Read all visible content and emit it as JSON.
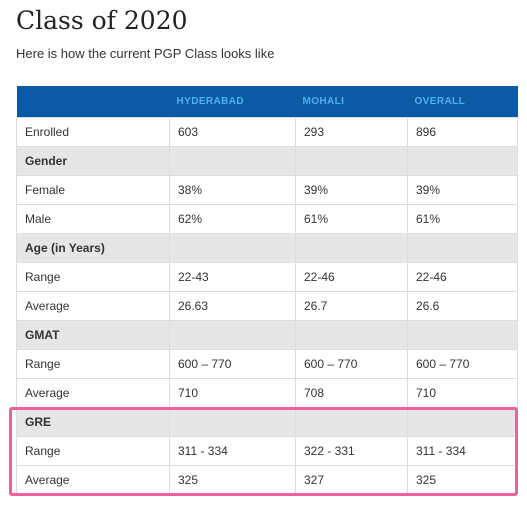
{
  "page": {
    "title": "Class of 2020",
    "subtitle": "Here is how the current PGP Class looks like"
  },
  "colors": {
    "header_bg": "#0b5aa5",
    "header_text": "#4fb0f0",
    "section_bg": "#e6e6e6",
    "highlight": "#f0609b"
  },
  "table": {
    "headers": [
      "",
      "HYDERABAD",
      "MOHALI",
      "OVERALL"
    ],
    "rows": [
      {
        "type": "data",
        "cells": [
          "Enrolled",
          "603",
          "293",
          "896"
        ]
      },
      {
        "type": "section",
        "cells": [
          "Gender",
          "",
          "",
          ""
        ]
      },
      {
        "type": "data",
        "cells": [
          "Female",
          "38%",
          "39%",
          "39%"
        ]
      },
      {
        "type": "data",
        "cells": [
          "Male",
          "62%",
          "61%",
          "61%"
        ]
      },
      {
        "type": "section",
        "cells": [
          "Age (in Years)",
          "",
          "",
          ""
        ]
      },
      {
        "type": "data",
        "cells": [
          "Range",
          "22-43",
          "22-46",
          "22-46"
        ]
      },
      {
        "type": "data",
        "cells": [
          "Average",
          "26.63",
          "26.7",
          "26.6"
        ]
      },
      {
        "type": "section",
        "cells": [
          "GMAT",
          "",
          "",
          ""
        ]
      },
      {
        "type": "data",
        "cells": [
          "Range",
          "600 – 770",
          "600 – 770",
          "600 – 770"
        ]
      },
      {
        "type": "data",
        "cells": [
          "Average",
          "710",
          "708",
          "710"
        ]
      },
      {
        "type": "section",
        "cells": [
          "GRE",
          "",
          "",
          ""
        ]
      },
      {
        "type": "data",
        "cells": [
          "Range",
          "311 - 334",
          " 322 - 331",
          "311 - 334"
        ]
      },
      {
        "type": "data",
        "cells": [
          "Average",
          "325",
          "327",
          "325"
        ]
      }
    ]
  }
}
